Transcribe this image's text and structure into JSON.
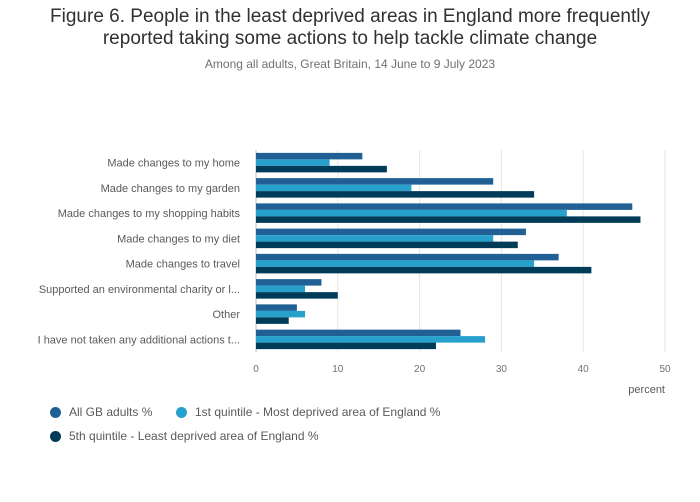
{
  "title_line1": "Figure 6. People in the least deprived areas in England more frequently",
  "title_line2": "reported taking some actions to help tackle climate change",
  "subtitle": "Among all adults, Great Britain, 14 June to 9 July 2023",
  "chart_data": {
    "type": "bar",
    "orientation": "horizontal",
    "categories": [
      "Made changes to my home",
      "Made changes to my garden",
      "Made changes to my shopping habits",
      "Made changes to my diet",
      "Made changes to travel",
      "Supported an environmental charity or l...",
      "Other",
      "I have not taken any additional actions t..."
    ],
    "series": [
      {
        "name": "All GB adults %",
        "color": "#206095",
        "values": [
          13,
          29,
          46,
          33,
          37,
          8,
          5,
          25
        ]
      },
      {
        "name": "1st quintile - Most deprived area of England %",
        "color": "#27a0cc",
        "values": [
          9,
          19,
          38,
          29,
          34,
          6,
          6,
          28
        ]
      },
      {
        "name": "5th quintile - Least deprived area of England %",
        "color": "#003c57",
        "values": [
          16,
          34,
          47,
          32,
          41,
          10,
          4,
          22
        ]
      }
    ],
    "xlabel": "percent",
    "xlim": [
      0,
      50
    ],
    "xticks": [
      0,
      10,
      20,
      30,
      40,
      50
    ],
    "grid": true,
    "legend_position": "bottom"
  }
}
